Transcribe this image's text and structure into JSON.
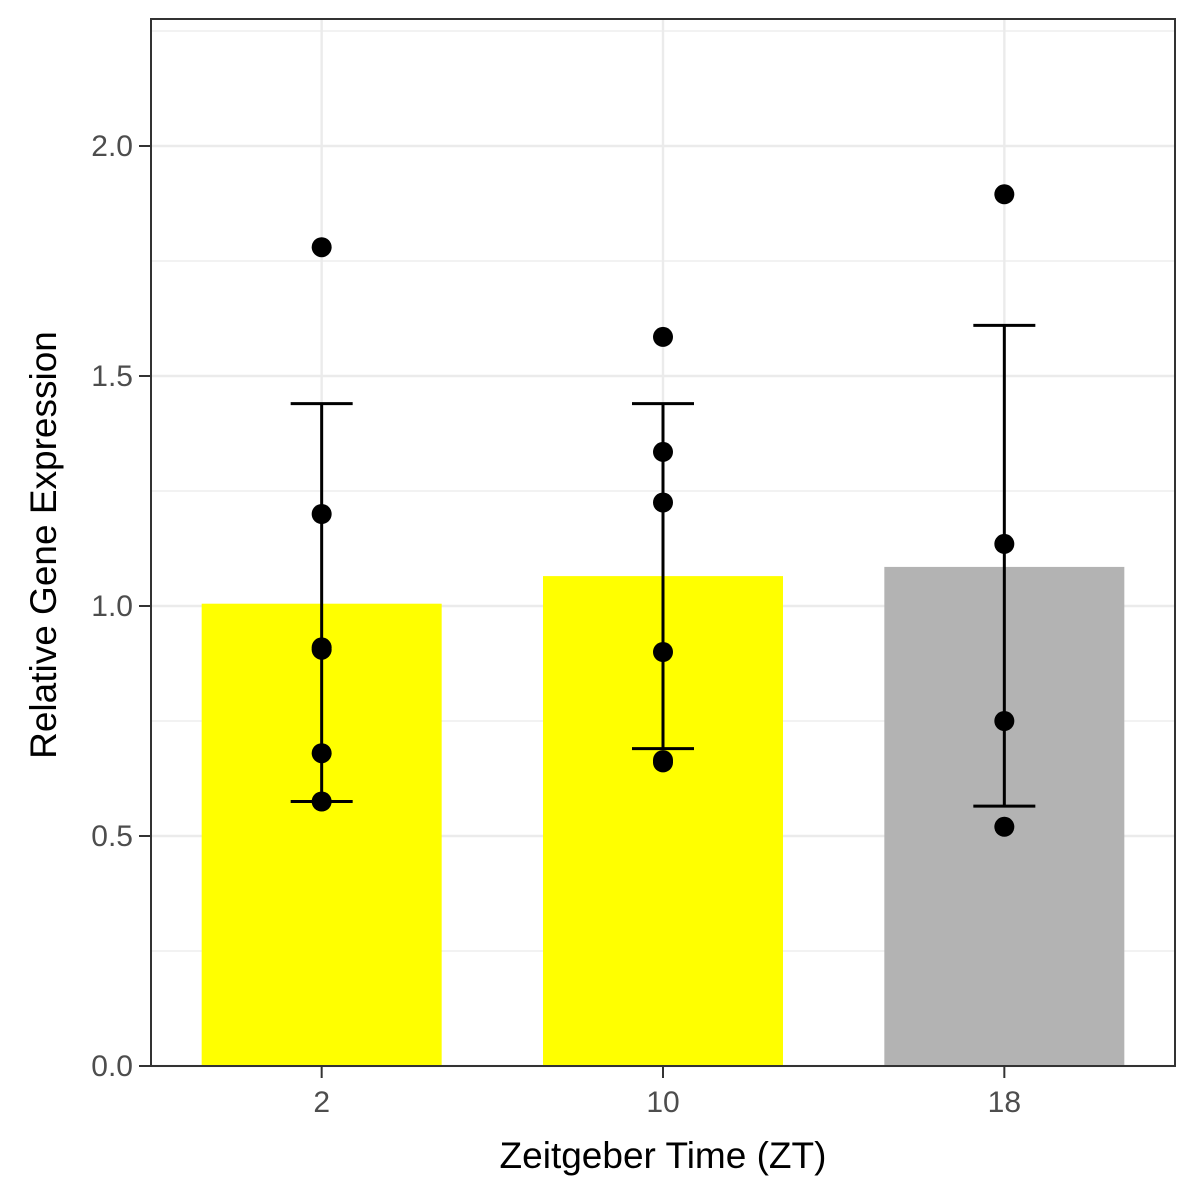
{
  "chart_data": {
    "type": "bar",
    "xlabel": "Zeitgeber Time (ZT)",
    "ylabel": "Relative Gene Expression",
    "categories": [
      "2",
      "10",
      "18"
    ],
    "values": [
      1.005,
      1.065,
      1.085
    ],
    "error_bars": [
      {
        "low": 0.575,
        "high": 1.44
      },
      {
        "low": 0.69,
        "high": 1.44
      },
      {
        "low": 0.565,
        "high": 1.61
      }
    ],
    "points": [
      [
        1.78,
        1.2,
        0.91,
        0.905,
        0.68,
        0.575
      ],
      [
        1.585,
        1.335,
        1.225,
        0.9,
        0.665,
        0.66
      ],
      [
        1.895,
        1.135,
        0.75,
        0.52
      ]
    ],
    "bar_colors": [
      "#FFFF00",
      "#FFFF00",
      "#B3B3B3"
    ],
    "y_ticks": [
      "0.0",
      "0.5",
      "1.0",
      "1.5",
      "2.0"
    ],
    "ylim": [
      0,
      2.25
    ],
    "grid": true,
    "legend": "none"
  }
}
